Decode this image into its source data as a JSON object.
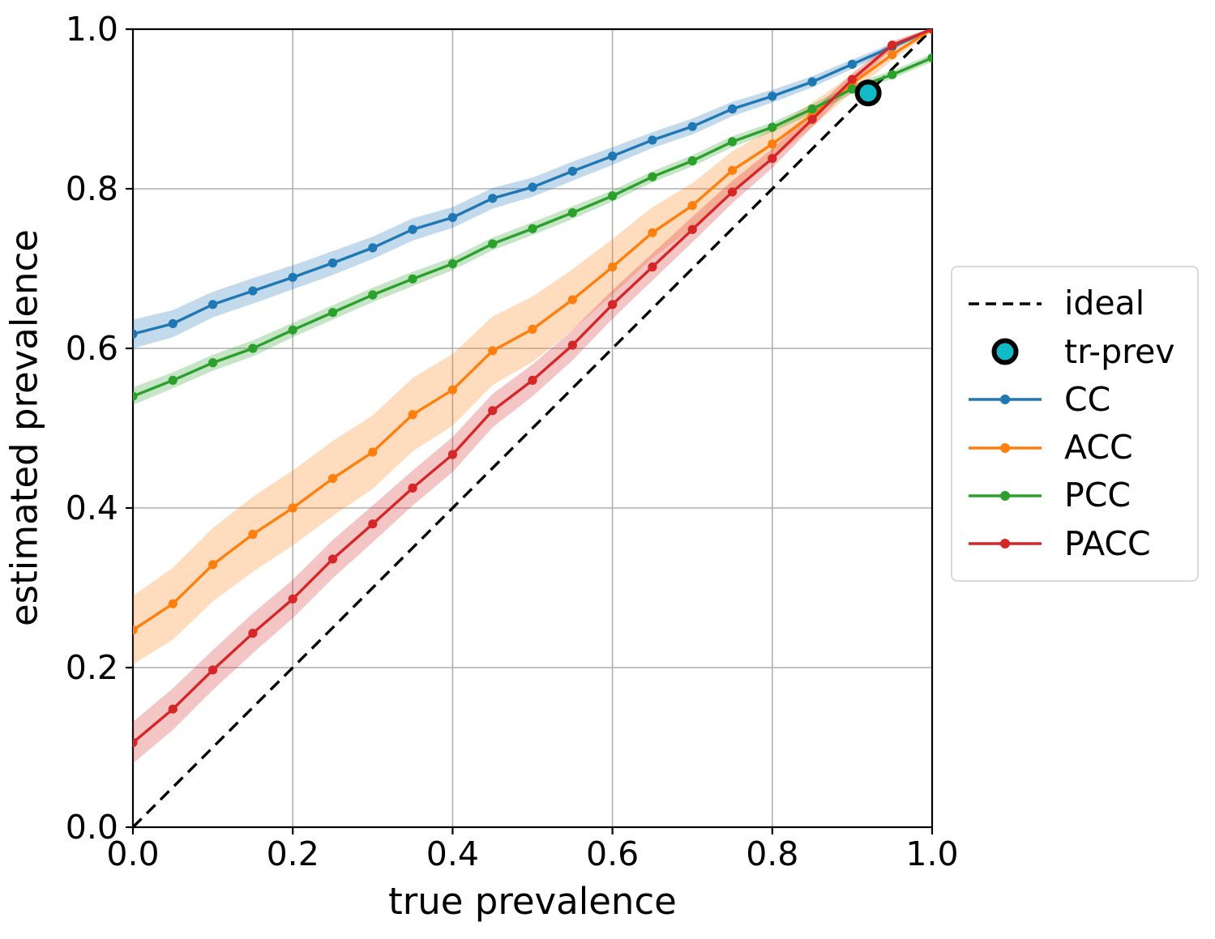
{
  "figure": {
    "background": "#ffffff",
    "grid_color": "#b0b0b0",
    "spine_color": "#000000"
  },
  "legend": {
    "entries": [
      {
        "label": "ideal",
        "type": "dashed-line",
        "color": "#000000"
      },
      {
        "label": "tr-prev",
        "type": "circle",
        "color": "#12b9c6",
        "edge": "#000000"
      },
      {
        "label": "CC",
        "type": "line-marker",
        "color": "#1f77b4"
      },
      {
        "label": "ACC",
        "type": "line-marker",
        "color": "#ff7f0e"
      },
      {
        "label": "PCC",
        "type": "line-marker",
        "color": "#2ca02c"
      },
      {
        "label": "PACC",
        "type": "line-marker",
        "color": "#d62728"
      }
    ]
  },
  "chart_data": {
    "type": "line",
    "title": "",
    "xlabel": "true prevalence",
    "ylabel": "estimated prevalence",
    "xlim": [
      0.0,
      1.0
    ],
    "ylim": [
      0.0,
      1.0
    ],
    "grid": true,
    "legend_position": "right outside",
    "x_tick_labels": [
      "0.0",
      "0.2",
      "0.4",
      "0.6",
      "0.8",
      "1.0"
    ],
    "y_tick_labels": [
      "0.0",
      "0.2",
      "0.4",
      "0.6",
      "0.8",
      "1.0"
    ],
    "x": [
      0.0,
      0.05,
      0.1,
      0.15,
      0.2,
      0.25,
      0.3,
      0.35,
      0.4,
      0.45,
      0.5,
      0.55,
      0.6,
      0.65,
      0.7,
      0.75,
      0.8,
      0.85,
      0.9,
      0.95,
      1.0
    ],
    "series": [
      {
        "name": "CC",
        "color": "#1f77b4",
        "values": [
          0.618,
          0.631,
          0.655,
          0.672,
          0.689,
          0.707,
          0.726,
          0.749,
          0.764,
          0.788,
          0.802,
          0.822,
          0.841,
          0.861,
          0.878,
          0.9,
          0.916,
          0.934,
          0.956,
          0.978,
          1.0
        ],
        "band_halfwidth": [
          0.018,
          0.017,
          0.016,
          0.016,
          0.015,
          0.015,
          0.014,
          0.014,
          0.013,
          0.013,
          0.012,
          0.012,
          0.011,
          0.01,
          0.01,
          0.009,
          0.008,
          0.007,
          0.006,
          0.004,
          0.002
        ]
      },
      {
        "name": "ACC",
        "color": "#ff7f0e",
        "values": [
          0.247,
          0.28,
          0.329,
          0.367,
          0.4,
          0.437,
          0.47,
          0.517,
          0.548,
          0.597,
          0.624,
          0.661,
          0.702,
          0.745,
          0.779,
          0.823,
          0.856,
          0.893,
          0.932,
          0.968,
          1.0
        ],
        "band_halfwidth": [
          0.043,
          0.045,
          0.046,
          0.047,
          0.047,
          0.047,
          0.046,
          0.046,
          0.045,
          0.043,
          0.041,
          0.038,
          0.035,
          0.032,
          0.028,
          0.024,
          0.02,
          0.015,
          0.011,
          0.007,
          0.003
        ]
      },
      {
        "name": "PCC",
        "color": "#2ca02c",
        "values": [
          0.54,
          0.56,
          0.582,
          0.6,
          0.623,
          0.645,
          0.667,
          0.687,
          0.706,
          0.731,
          0.75,
          0.77,
          0.791,
          0.815,
          0.835,
          0.859,
          0.877,
          0.9,
          0.925,
          0.943,
          0.964
        ],
        "band_halfwidth": [
          0.011,
          0.01,
          0.01,
          0.01,
          0.009,
          0.009,
          0.009,
          0.009,
          0.008,
          0.008,
          0.008,
          0.008,
          0.007,
          0.007,
          0.007,
          0.007,
          0.006,
          0.006,
          0.006,
          0.005,
          0.005
        ]
      },
      {
        "name": "PACC",
        "color": "#d62728",
        "values": [
          0.106,
          0.148,
          0.197,
          0.243,
          0.286,
          0.336,
          0.38,
          0.425,
          0.467,
          0.522,
          0.56,
          0.604,
          0.655,
          0.702,
          0.749,
          0.796,
          0.838,
          0.887,
          0.937,
          0.98,
          1.0
        ],
        "band_halfwidth": [
          0.026,
          0.026,
          0.025,
          0.025,
          0.024,
          0.024,
          0.023,
          0.022,
          0.022,
          0.021,
          0.02,
          0.019,
          0.018,
          0.017,
          0.016,
          0.014,
          0.012,
          0.01,
          0.008,
          0.005,
          0.002
        ]
      }
    ],
    "ideal_line": {
      "label": "ideal",
      "style": "dashed",
      "color": "#000000",
      "from": [
        0.0,
        0.0
      ],
      "to": [
        1.0,
        1.0
      ]
    },
    "tr_prev_point": {
      "label": "tr-prev",
      "x": 0.92,
      "y": 0.92,
      "color": "#12b9c6",
      "edge": "#000000"
    }
  }
}
